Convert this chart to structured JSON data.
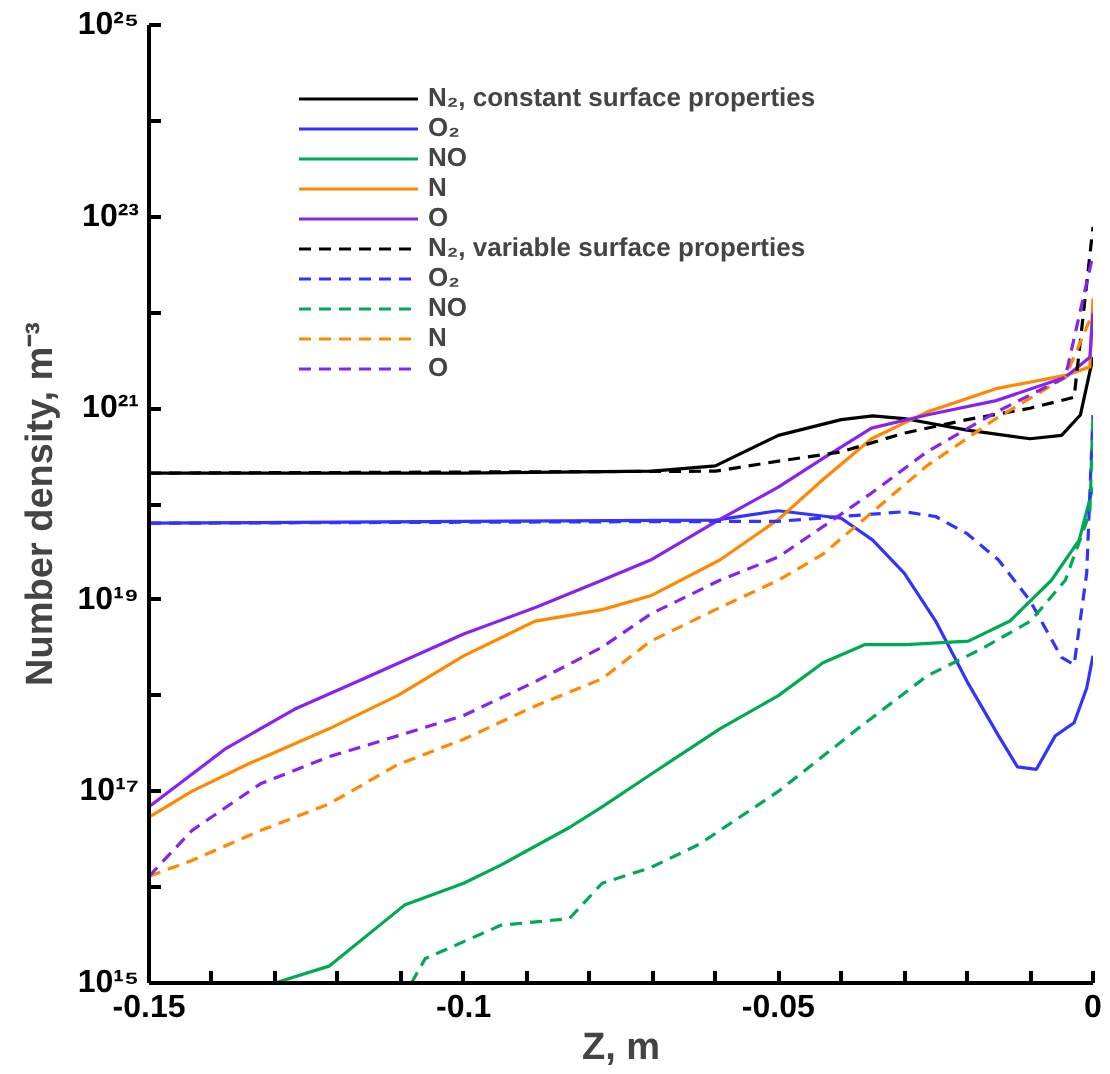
{
  "chart_data": {
    "type": "line",
    "xlabel": "Z, m",
    "ylabel": "Number density, m⁻³",
    "log": "y",
    "xlim": [
      -0.15,
      0
    ],
    "ylim": [
      1000000000000000.0,
      1e+25
    ],
    "xticks": [
      -0.15,
      {
        "value": -0.14,
        "label": null
      },
      {
        "value": -0.13,
        "label": null
      },
      {
        "value": -0.12,
        "label": null
      },
      {
        "value": -0.11,
        "label": null
      },
      -0.1,
      {
        "value": -0.09,
        "label": null
      },
      {
        "value": -0.08,
        "label": null
      },
      {
        "value": -0.07,
        "label": null
      },
      {
        "value": -0.06,
        "label": null
      },
      -0.05,
      {
        "value": -0.04,
        "label": null
      },
      {
        "value": -0.03,
        "label": null
      },
      {
        "value": -0.02,
        "label": null
      },
      {
        "value": -0.01,
        "label": null
      },
      0
    ],
    "yticks": [
      {
        "value": 1000000000000000.0,
        "label": "10¹⁵"
      },
      {
        "value": 1e+16,
        "label": null
      },
      {
        "value": 1e+17,
        "label": "10¹⁷"
      },
      {
        "value": 1e+18,
        "label": null
      },
      {
        "value": 1e+19,
        "label": "10¹⁹"
      },
      {
        "value": 1e+20,
        "label": null
      },
      {
        "value": 1e+21,
        "label": "10²¹"
      },
      {
        "value": 1e+22,
        "label": null
      },
      {
        "value": 1e+23,
        "label": "10²³"
      },
      {
        "value": 1e+24,
        "label": null
      },
      {
        "value": 1e+25,
        "label": "10²⁵"
      }
    ],
    "grid": false,
    "legend": "top left",
    "marker": "none",
    "series": [
      {
        "name": "N₂, constant surface properties",
        "color": "#000000",
        "line_style": "solid",
        "x": [
          -0.15,
          -0.1,
          -0.07,
          -0.06,
          -0.05,
          -0.04,
          -0.035,
          -0.03,
          -0.02,
          -0.01,
          -0.005,
          -0.002,
          0
        ],
        "values": [
          2.1e+20,
          2.1e+20,
          2.2e+20,
          2.5e+20,
          5.2e+20,
          7.6e+20,
          8.3e+20,
          7.8e+20,
          5.9e+20,
          4.8e+20,
          5.2e+20,
          8.5e+20,
          3.4e+21
        ]
      },
      {
        "name": "O₂",
        "color": "#3333ff",
        "line_style": "solid",
        "x": [
          -0.15,
          -0.06,
          -0.05,
          -0.04,
          -0.035,
          -0.03,
          -0.025,
          -0.02,
          -0.015,
          -0.012,
          -0.009,
          -0.006,
          -0.003,
          -0.001,
          0
        ],
        "values": [
          6.3e+19,
          6.8e+19,
          8.5e+19,
          7.1e+19,
          4.2e+19,
          1.9e+19,
          6e+18,
          1.4e+18,
          3.8e+17,
          1.8e+17,
          1.7e+17,
          3.8e+17,
          5.2e+17,
          1.2e+18,
          2.6e+18
        ]
      },
      {
        "name": "NO",
        "color": "#00aa55",
        "line_style": "solid",
        "x": [
          -0.13,
          -0.1214,
          -0.1094,
          -0.1,
          -0.0941,
          -0.0832,
          -0.078,
          -0.0703,
          -0.0593,
          -0.05,
          -0.0429,
          -0.0363,
          -0.0297,
          -0.0198,
          -0.0132,
          -0.0066,
          -0.0022,
          0
        ],
        "values": [
          1000000000000000.0,
          1500000000000000.0,
          6500000000000000.0,
          1.1e+16,
          1.7e+16,
          4.2e+16,
          6.9e+16,
          1.5e+17,
          4.5e+17,
          1e+18,
          2.2e+18,
          3.4e+18,
          3.4e+18,
          3.7e+18,
          6e+18,
          1.6e+19,
          4.2e+19,
          1.5e+20
        ]
      },
      {
        "name": "N",
        "color": "#ff8800",
        "line_style": "solid",
        "x": [
          -0.15,
          -0.1432,
          -0.1345,
          -0.1214,
          -0.1105,
          -0.1,
          -0.0886,
          -0.078,
          -0.0703,
          -0.0593,
          -0.05,
          -0.0429,
          -0.0352,
          -0.0264,
          -0.0154,
          -0.0044,
          -0.0005,
          0
        ],
        "values": [
          5.4e+16,
          1e+17,
          1.9e+17,
          4.5e+17,
          1e+18,
          2.6e+18,
          6e+18,
          7.9e+18,
          1.1e+19,
          2.6e+19,
          6.9e+19,
          1.8e+20,
          4.8e+20,
          9.1e+20,
          1.6e+21,
          2.2e+21,
          2.7e+21,
          1.4e+22
        ]
      },
      {
        "name": "O",
        "color": "#8822ee",
        "line_style": "solid",
        "x": [
          -0.15,
          -0.1378,
          -0.1269,
          -0.1159,
          -0.1,
          -0.0886,
          -0.078,
          -0.0703,
          -0.0593,
          -0.05,
          -0.0429,
          -0.0352,
          -0.0264,
          -0.0154,
          -0.0044,
          -0.0005,
          0
        ],
        "values": [
          6.9e+16,
          2.8e+17,
          7.2e+17,
          1.5e+18,
          4.4e+18,
          8.3e+18,
          1.6e+19,
          2.6e+19,
          6.9e+19,
          1.5e+20,
          3e+20,
          6.2e+20,
          8.5e+20,
          1.2e+21,
          2.1e+21,
          3.4e+21,
          1e+22
        ]
      },
      {
        "name": "N₂, variable surface properties",
        "color": "#000000",
        "line_style": "dashed",
        "x": [
          -0.15,
          -0.06,
          -0.05,
          -0.04,
          -0.03,
          -0.02,
          -0.01,
          -0.003,
          0
        ],
        "values": [
          2.1e+20,
          2.2e+20,
          2.8e+20,
          3.5e+20,
          5.5e+20,
          7.6e+20,
          1e+21,
          1.3e+21,
          7.8e+22
        ]
      },
      {
        "name": "O₂",
        "color": "#3333ff",
        "line_style": "dashed",
        "x": [
          -0.15,
          -0.05,
          -0.04,
          -0.03,
          -0.025,
          -0.02,
          -0.015,
          -0.01,
          -0.005,
          -0.003,
          -0.001,
          0
        ],
        "values": [
          6.3e+19,
          6.6e+19,
          7.4e+19,
          8.3e+19,
          7.4e+19,
          4.9e+19,
          2.6e+19,
          9.8e+18,
          2.5e+18,
          2.1e+18,
          1.9e+19,
          8.5e+20
        ]
      },
      {
        "name": "NO",
        "color": "#00aa55",
        "line_style": "dashed",
        "x": [
          -0.1083,
          -0.1061,
          -0.0941,
          -0.0832,
          -0.078,
          -0.0703,
          -0.0626,
          -0.05,
          -0.0374,
          -0.0264,
          -0.0176,
          -0.0099,
          -0.0044,
          -0.0005,
          0
        ],
        "values": [
          1000000000000000.0,
          1800000000000000.0,
          4000000000000000.0,
          4700000000000000.0,
          1.1e+16,
          1.6e+16,
          2.8e+16,
          1e+17,
          4.5e+17,
          1.6e+18,
          3.1e+18,
          6e+18,
          1.6e+19,
          8.1e+19,
          8.5e+20
        ]
      },
      {
        "name": "N",
        "color": "#ff8800",
        "line_style": "dashed",
        "x": [
          -0.15,
          -0.1432,
          -0.1323,
          -0.1214,
          -0.1105,
          -0.1,
          -0.0886,
          -0.078,
          -0.0703,
          -0.0593,
          -0.05,
          -0.0429,
          -0.0352,
          -0.0264,
          -0.0154,
          -0.0044,
          0
        ],
        "values": [
          1.3e+16,
          1.9e+16,
          3.9e+16,
          7.4e+16,
          1.9e+17,
          3.5e+17,
          7.8e+17,
          1.5e+18,
          3.7e+18,
          8.3e+18,
          1.6e+19,
          3e+19,
          8.1e+19,
          2.5e+20,
          7.8e+20,
          2.1e+21,
          1e+22
        ]
      },
      {
        "name": "O",
        "color": "#8822ee",
        "line_style": "dashed",
        "x": [
          -0.15,
          -0.1432,
          -0.1323,
          -0.1214,
          -0.1105,
          -0.1,
          -0.0886,
          -0.078,
          -0.0703,
          -0.0593,
          -0.05,
          -0.0429,
          -0.0352,
          -0.0264,
          -0.0154,
          -0.0044,
          0
        ],
        "values": [
          1.3e+16,
          3.9e+16,
          1.2e+17,
          2.3e+17,
          3.8e+17,
          6.2e+17,
          1.4e+18,
          3.2e+18,
          7.1e+18,
          1.6e+19,
          2.8e+19,
          5.8e+19,
          1.3e+20,
          3.5e+20,
          9.1e+20,
          2.1e+21,
          4e+22
        ]
      }
    ]
  }
}
